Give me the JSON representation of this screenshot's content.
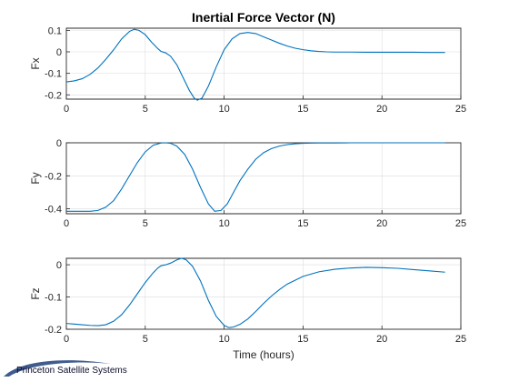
{
  "figure": {
    "title": "Inertial Force Vector (N)",
    "xlabel": "Time (hours)",
    "watermark": "Princeton Satellite Systems"
  },
  "chart_data": [
    {
      "type": "line",
      "ylabel": "Fx",
      "xlim": [
        0,
        25
      ],
      "ylim": [
        -0.22,
        0.11
      ],
      "xticks": [
        0,
        5,
        10,
        15,
        20,
        25
      ],
      "yticks": [
        -0.2,
        -0.1,
        0,
        0.1
      ],
      "yticklabels": [
        "-0.2",
        "-0.1",
        "0",
        "0.1"
      ],
      "grid": true,
      "series": [
        {
          "color": "#0072BD",
          "x": [
            0,
            0.5,
            1,
            1.5,
            2,
            2.5,
            3,
            3.5,
            4,
            4.3,
            4.6,
            5,
            5.4,
            5.8,
            6,
            6.3,
            6.6,
            7,
            7.4,
            7.8,
            8.1,
            8.3,
            8.6,
            9,
            9.5,
            10,
            10.5,
            11,
            11.5,
            12,
            12.5,
            13,
            13.5,
            14,
            14.5,
            15,
            15.5,
            16,
            16.5,
            17,
            18,
            19,
            20,
            21,
            22,
            23,
            24
          ],
          "y": [
            -0.14,
            -0.135,
            -0.125,
            -0.105,
            -0.075,
            -0.035,
            0.01,
            0.06,
            0.095,
            0.105,
            0.1,
            0.08,
            0.045,
            0.015,
            0.002,
            -0.005,
            -0.02,
            -0.06,
            -0.12,
            -0.18,
            -0.215,
            -0.225,
            -0.215,
            -0.16,
            -0.07,
            0.01,
            0.06,
            0.085,
            0.09,
            0.085,
            0.07,
            0.055,
            0.04,
            0.027,
            0.017,
            0.01,
            0.005,
            0.002,
            0,
            -0.001,
            -0.001,
            -0.002,
            -0.002,
            -0.002,
            -0.002,
            -0.003,
            -0.003
          ]
        }
      ]
    },
    {
      "type": "line",
      "ylabel": "Fy",
      "xlim": [
        0,
        25
      ],
      "ylim": [
        -0.43,
        0
      ],
      "xticks": [
        0,
        5,
        10,
        15,
        20,
        25
      ],
      "yticks": [
        -0.4,
        -0.2,
        0
      ],
      "yticklabels": [
        "-0.4",
        "-0.2",
        "0"
      ],
      "grid": true,
      "series": [
        {
          "color": "#0072BD",
          "x": [
            0,
            0.5,
            1,
            1.5,
            2,
            2.5,
            3,
            3.5,
            4,
            4.5,
            5,
            5.5,
            6,
            6.3,
            6.6,
            7,
            7.5,
            8,
            8.5,
            9,
            9.4,
            9.8,
            10.2,
            10.6,
            11,
            11.5,
            12,
            12.5,
            13,
            13.5,
            14,
            14.5,
            15,
            15.5,
            16,
            17,
            18,
            19,
            20,
            21,
            22,
            23,
            24
          ],
          "y": [
            -0.415,
            -0.415,
            -0.415,
            -0.415,
            -0.41,
            -0.39,
            -0.35,
            -0.28,
            -0.2,
            -0.12,
            -0.055,
            -0.015,
            -0.001,
            0,
            -0.003,
            -0.02,
            -0.07,
            -0.16,
            -0.27,
            -0.37,
            -0.415,
            -0.41,
            -0.37,
            -0.3,
            -0.23,
            -0.16,
            -0.1,
            -0.06,
            -0.035,
            -0.02,
            -0.011,
            -0.006,
            -0.003,
            -0.002,
            -0.001,
            -0.001,
            0,
            0,
            0,
            0,
            0,
            0,
            0
          ]
        }
      ]
    },
    {
      "type": "line",
      "ylabel": "Fz",
      "xlim": [
        0,
        25
      ],
      "ylim": [
        -0.2,
        0.02
      ],
      "xticks": [
        0,
        5,
        10,
        15,
        20,
        25
      ],
      "yticks": [
        -0.2,
        -0.1,
        0
      ],
      "yticklabels": [
        "-0.2",
        "-0.1",
        "0"
      ],
      "grid": true,
      "series": [
        {
          "color": "#0072BD",
          "x": [
            0,
            0.5,
            1,
            1.5,
            2,
            2.5,
            3,
            3.5,
            4,
            4.5,
            5,
            5.5,
            5.8,
            6,
            6.3,
            6.6,
            7,
            7.3,
            7.6,
            8,
            8.5,
            9,
            9.5,
            10,
            10.3,
            10.6,
            11,
            11.5,
            12,
            12.5,
            13,
            13.5,
            14,
            15,
            16,
            17,
            18,
            19,
            20,
            21,
            22,
            23,
            24
          ],
          "y": [
            -0.182,
            -0.184,
            -0.186,
            -0.188,
            -0.189,
            -0.186,
            -0.175,
            -0.155,
            -0.125,
            -0.09,
            -0.055,
            -0.025,
            -0.01,
            -0.003,
            0,
            0.005,
            0.015,
            0.02,
            0.015,
            -0.005,
            -0.05,
            -0.11,
            -0.16,
            -0.188,
            -0.195,
            -0.193,
            -0.185,
            -0.168,
            -0.145,
            -0.12,
            -0.097,
            -0.077,
            -0.06,
            -0.036,
            -0.022,
            -0.014,
            -0.01,
            -0.008,
            -0.009,
            -0.011,
            -0.015,
            -0.019,
            -0.023
          ]
        }
      ]
    }
  ]
}
